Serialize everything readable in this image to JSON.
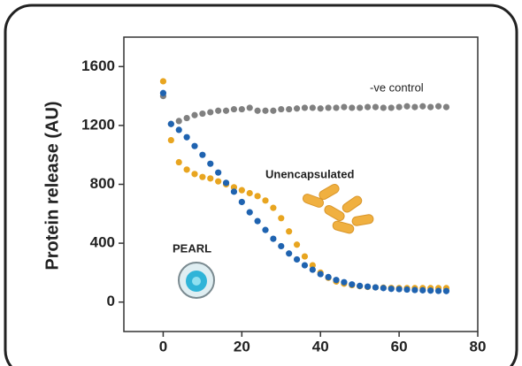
{
  "chart_data": {
    "type": "scatter",
    "y_label": "Protein release (AU)",
    "x": [
      0,
      2,
      4,
      6,
      8,
      10,
      12,
      14,
      16,
      18,
      20,
      22,
      24,
      26,
      28,
      30,
      32,
      34,
      36,
      38,
      40,
      42,
      44,
      46,
      48,
      50,
      52,
      54,
      56,
      58,
      60,
      62,
      64,
      66,
      68,
      70,
      72
    ],
    "series": [
      {
        "name": "Unencapsulated",
        "color": "#e8a520",
        "values": [
          1500,
          1100,
          950,
          900,
          870,
          850,
          840,
          820,
          800,
          780,
          760,
          740,
          720,
          690,
          640,
          570,
          480,
          390,
          310,
          250,
          200,
          165,
          140,
          125,
          115,
          108,
          103,
          100,
          98,
          96,
          95,
          95,
          95,
          95,
          95,
          95,
          95
        ]
      },
      {
        "name": "-ve control",
        "color": "#808080",
        "values": [
          1400,
          1210,
          1230,
          1250,
          1270,
          1280,
          1290,
          1300,
          1300,
          1310,
          1310,
          1320,
          1300,
          1300,
          1300,
          1310,
          1310,
          1315,
          1320,
          1320,
          1315,
          1320,
          1320,
          1325,
          1320,
          1320,
          1325,
          1325,
          1320,
          1320,
          1325,
          1330,
          1325,
          1330,
          1325,
          1330,
          1325
        ]
      },
      {
        "name": "PEARL",
        "color": "#1f63b0",
        "values": [
          1420,
          1210,
          1170,
          1120,
          1060,
          1000,
          940,
          880,
          810,
          750,
          680,
          610,
          550,
          490,
          430,
          380,
          330,
          290,
          250,
          220,
          190,
          170,
          150,
          135,
          120,
          110,
          105,
          100,
          95,
          90,
          88,
          85,
          82,
          80,
          78,
          76,
          75
        ]
      }
    ],
    "xlim": [
      -10,
      80
    ],
    "xticks": [
      0,
      20,
      40,
      60,
      80
    ],
    "ylim": [
      -200,
      1800
    ],
    "yticks": [
      0,
      400,
      800,
      1200,
      1600
    ]
  }
}
